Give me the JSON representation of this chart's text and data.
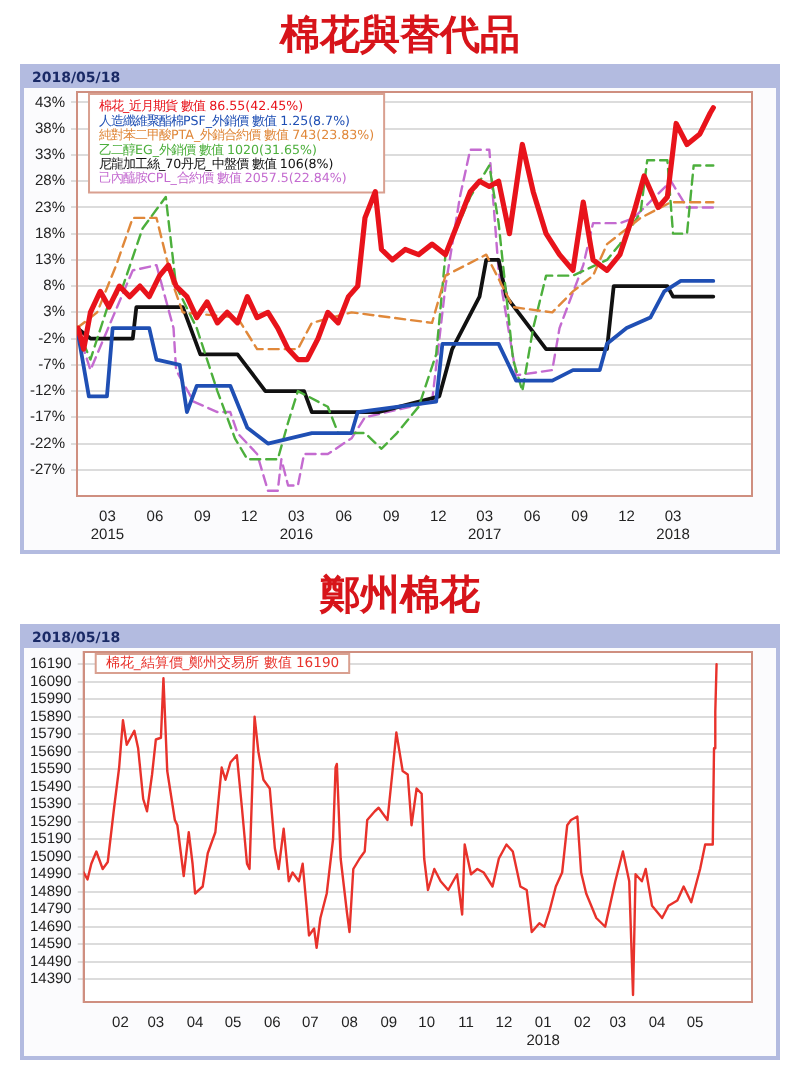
{
  "chart_data": [
    {
      "type": "line",
      "title": "棉花與替代品",
      "annotations": [
        "2018/05/18"
      ],
      "xlim": [
        "2015-01-01",
        "2018-08-01"
      ],
      "ylim": [
        -32,
        45
      ],
      "xticks": [
        {
          "value": "2015-03-01",
          "label": "03\n2015"
        },
        {
          "value": "2015-06-01",
          "label": "06"
        },
        {
          "value": "2015-09-01",
          "label": "09"
        },
        {
          "value": "2015-12-01",
          "label": "12"
        },
        {
          "value": "2016-03-01",
          "label": "03\n2016"
        },
        {
          "value": "2016-06-01",
          "label": "06"
        },
        {
          "value": "2016-09-01",
          "label": "09"
        },
        {
          "value": "2016-12-01",
          "label": "12"
        },
        {
          "value": "2017-03-01",
          "label": "03\n2017"
        },
        {
          "value": "2017-06-01",
          "label": "06"
        },
        {
          "value": "2017-09-01",
          "label": "09"
        },
        {
          "value": "2017-12-01",
          "label": "12"
        },
        {
          "value": "2018-03-01",
          "label": "03\n2018"
        }
      ],
      "yticks": [
        {
          "value": 43,
          "label": "43%"
        },
        {
          "value": 38,
          "label": "38%"
        },
        {
          "value": 33,
          "label": "33%"
        },
        {
          "value": 28,
          "label": "28%"
        },
        {
          "value": 23,
          "label": "23%"
        },
        {
          "value": 18,
          "label": "18%"
        },
        {
          "value": 13,
          "label": "13%"
        },
        {
          "value": 8,
          "label": "8%"
        },
        {
          "value": 3,
          "label": "3%"
        },
        {
          "value": -2,
          "label": "-2%"
        },
        {
          "value": -7,
          "label": "-7%"
        },
        {
          "value": -12,
          "label": "-12%"
        },
        {
          "value": -17,
          "label": "-17%"
        },
        {
          "value": -22,
          "label": "-22%"
        },
        {
          "value": -27,
          "label": "-27%"
        }
      ],
      "grid": "y",
      "legend": "top left",
      "marker": "none",
      "series": [
        {
          "name": "棉花_近月期貨 數值 86.55(42.45%)",
          "color": "#e8131b",
          "line_style": "solid",
          "x": [
            "2015-01-03",
            "2015-01-14",
            "2015-01-27",
            "2015-02-15",
            "2015-03-04",
            "2015-03-24",
            "2015-04-13",
            "2015-05-03",
            "2015-05-21",
            "2015-06-10",
            "2015-06-27",
            "2015-07-12",
            "2015-08-02",
            "2015-08-21",
            "2015-09-10",
            "2015-09-30",
            "2015-10-19",
            "2015-11-08",
            "2015-11-27",
            "2015-12-16",
            "2016-01-06",
            "2016-01-25",
            "2016-02-14",
            "2016-03-04",
            "2016-03-22",
            "2016-04-12",
            "2016-05-01",
            "2016-05-21",
            "2016-06-10",
            "2016-06-28",
            "2016-07-12",
            "2016-08-01",
            "2016-08-13",
            "2016-09-03",
            "2016-09-28",
            "2016-10-24",
            "2016-11-19",
            "2016-12-15",
            "2017-01-12",
            "2017-02-01",
            "2017-02-19",
            "2017-03-10",
            "2017-03-28",
            "2017-04-18",
            "2017-05-13",
            "2017-06-03",
            "2017-06-28",
            "2017-07-24",
            "2017-08-19",
            "2017-09-08",
            "2017-09-27",
            "2017-10-24",
            "2017-11-18",
            "2017-12-15",
            "2018-01-04",
            "2018-01-31",
            "2018-02-18",
            "2018-03-07",
            "2018-03-28",
            "2018-04-22",
            "2018-05-12",
            "2018-05-18"
          ],
          "values": [
            0,
            -4,
            3,
            7,
            4,
            8,
            6,
            8,
            6,
            10,
            12,
            8,
            6,
            2,
            5,
            1,
            3,
            1,
            6,
            2,
            3,
            0,
            -4,
            -6,
            -6,
            -2,
            3,
            1,
            6,
            8,
            21,
            26,
            15,
            13,
            15,
            14,
            16,
            14,
            21,
            26,
            28,
            27,
            28,
            18,
            35,
            26,
            18,
            14,
            11,
            24,
            13,
            11,
            14,
            22,
            29,
            23,
            25,
            39,
            35,
            37,
            41,
            42
          ]
        },
        {
          "name": "人造纖維聚酯棉PSF_外銷價 數值 1.25(8.7%)",
          "color": "#1f4fb4",
          "line_style": "solid",
          "x": [
            "2015-01-01",
            "2015-01-24",
            "2015-02-28",
            "2015-03-11",
            "2015-05-21",
            "2015-06-04",
            "2015-07-19",
            "2015-08-02",
            "2015-08-21",
            "2015-10-25",
            "2015-11-27",
            "2016-01-06",
            "2016-03-31",
            "2016-06-16",
            "2016-06-28",
            "2016-11-27",
            "2016-12-09",
            "2017-03-28",
            "2017-05-01",
            "2017-07-10",
            "2017-08-19",
            "2017-10-10",
            "2017-10-24",
            "2017-12-01",
            "2018-01-16",
            "2018-02-12",
            "2018-03-16",
            "2018-05-18"
          ],
          "values": [
            0,
            -13,
            -13,
            0,
            0,
            -6,
            -7,
            -16,
            -11,
            -11,
            -19,
            -22,
            -20,
            -20,
            -16,
            -14,
            -3,
            -3,
            -10,
            -10,
            -8,
            -8,
            -3,
            0,
            2,
            7,
            9,
            9
          ]
        },
        {
          "name": "純對苯二甲酸PTA_外銷合約價 數值 743(23.83%)",
          "color": "#e0883a",
          "line_style": "dashed",
          "x": [
            "2015-01-01",
            "2015-02-09",
            "2015-03-18",
            "2015-04-19",
            "2015-06-04",
            "2015-07-07",
            "2015-07-25",
            "2015-11-08",
            "2015-12-16",
            "2016-03-04",
            "2016-03-31",
            "2016-06-16",
            "2016-11-19",
            "2016-12-15",
            "2017-03-04",
            "2017-04-25",
            "2017-07-10",
            "2017-08-19",
            "2017-09-27",
            "2017-10-24",
            "2017-12-28",
            "2018-02-25",
            "2018-05-18"
          ],
          "values": [
            0,
            3,
            12,
            21,
            21,
            8,
            3,
            2,
            -4,
            -4,
            1,
            3,
            1,
            10,
            14,
            4,
            3,
            7,
            10,
            16,
            21,
            24,
            24
          ]
        },
        {
          "name": "乙二醇EG_外銷價 數值 1020(31.65%)",
          "color": "#4caf3c",
          "line_style": "dashed",
          "x": [
            "2015-01-01",
            "2015-01-27",
            "2015-03-01",
            "2015-03-31",
            "2015-05-08",
            "2015-06-22",
            "2015-07-12",
            "2015-08-21",
            "2015-09-30",
            "2015-11-03",
            "2015-11-27",
            "2016-01-25",
            "2016-02-14",
            "2016-03-04",
            "2016-05-01",
            "2016-05-21",
            "2016-07-12",
            "2016-08-13",
            "2016-09-12",
            "2016-10-24",
            "2016-11-27",
            "2016-12-15",
            "2017-02-01",
            "2017-03-10",
            "2017-03-28",
            "2017-04-25",
            "2017-05-13",
            "2017-06-03",
            "2017-06-28",
            "2017-08-19",
            "2017-10-24",
            "2017-11-18",
            "2017-12-28",
            "2018-01-10",
            "2018-02-18",
            "2018-03-01",
            "2018-03-28",
            "2018-04-10",
            "2018-05-18"
          ],
          "values": [
            0,
            -6,
            4,
            8,
            19,
            25,
            8,
            0,
            -12,
            -21,
            -25,
            -25,
            -18,
            -12,
            -15,
            -20,
            -20,
            -23,
            -20,
            -15,
            -5,
            14,
            25,
            31,
            20,
            -6,
            -12,
            0,
            10,
            10,
            13,
            16,
            22,
            32,
            32,
            18,
            18,
            31,
            31
          ]
        },
        {
          "name": "尼龍加工絲_70丹尼_中盤價 數值 106(8%)",
          "color": "#111111",
          "line_style": "solid",
          "x": [
            "2015-01-01",
            "2015-01-27",
            "2015-04-19",
            "2015-04-26",
            "2015-07-25",
            "2015-08-28",
            "2015-11-08",
            "2016-01-01",
            "2016-03-16",
            "2016-03-31",
            "2016-08-07",
            "2016-12-03",
            "2016-12-28",
            "2017-02-19",
            "2017-03-04",
            "2017-03-28",
            "2017-04-12",
            "2017-06-28",
            "2017-10-24",
            "2017-11-06",
            "2018-02-18",
            "2018-03-01",
            "2018-05-18"
          ],
          "values": [
            0,
            -2,
            -2,
            4,
            4,
            -5,
            -5,
            -12,
            -12,
            -16,
            -16,
            -13,
            -4,
            6,
            13,
            13,
            6,
            -4,
            -4,
            8,
            8,
            6,
            6
          ]
        },
        {
          "name": "己內醯胺CPL_合約價 數值 2057.5(22.84%)",
          "color": "#c46bd0",
          "line_style": "dashed",
          "x": [
            "2015-01-01",
            "2015-01-27",
            "2015-03-11",
            "2015-04-19",
            "2015-06-04",
            "2015-07-07",
            "2015-07-12",
            "2015-08-15",
            "2015-09-30",
            "2015-10-25",
            "2015-11-08",
            "2015-12-16",
            "2016-01-06",
            "2016-01-25",
            "2016-02-01",
            "2016-02-14",
            "2016-03-04",
            "2016-03-16",
            "2016-05-01",
            "2016-06-16",
            "2016-07-12",
            "2016-11-19",
            "2016-12-15",
            "2017-01-12",
            "2017-02-01",
            "2017-03-10",
            "2017-03-28",
            "2017-05-01",
            "2017-07-10",
            "2017-07-24",
            "2017-09-08",
            "2017-09-27",
            "2017-11-18",
            "2017-12-15",
            "2018-02-25",
            "2018-03-28",
            "2018-05-18"
          ],
          "values": [
            0,
            -8,
            2,
            11,
            12,
            0,
            -8,
            -14,
            -16,
            -16,
            -20,
            -24,
            -31,
            -31,
            -25,
            -30,
            -30,
            -24,
            -24,
            -21,
            -17,
            -14,
            8,
            25,
            34,
            34,
            11,
            -9,
            -8,
            0,
            12,
            20,
            20,
            21,
            28,
            23,
            23
          ]
        }
      ]
    },
    {
      "type": "line",
      "title": "鄭州棉花",
      "annotations": [
        "2018/05/18"
      ],
      "xlim": [
        "2017-01-03",
        "2018-06-15"
      ],
      "ylim": [
        14260,
        16260
      ],
      "xticks": [
        {
          "value": "2017-02-01",
          "label": "02"
        },
        {
          "value": "2017-03-01",
          "label": "03"
        },
        {
          "value": "2017-04-01",
          "label": "04"
        },
        {
          "value": "2017-05-01",
          "label": "05"
        },
        {
          "value": "2017-06-01",
          "label": "06"
        },
        {
          "value": "2017-07-01",
          "label": "07"
        },
        {
          "value": "2017-08-01",
          "label": "08"
        },
        {
          "value": "2017-09-01",
          "label": "09"
        },
        {
          "value": "2017-10-01",
          "label": "10"
        },
        {
          "value": "2017-11-01",
          "label": "11"
        },
        {
          "value": "2017-12-01",
          "label": "12"
        },
        {
          "value": "2018-01-01",
          "label": "01\n2018"
        },
        {
          "value": "2018-02-01",
          "label": "02"
        },
        {
          "value": "2018-03-01",
          "label": "03"
        },
        {
          "value": "2018-04-01",
          "label": "04"
        },
        {
          "value": "2018-05-01",
          "label": "05"
        }
      ],
      "yticks": [
        16190,
        16090,
        15990,
        15890,
        15790,
        15690,
        15590,
        15490,
        15390,
        15290,
        15190,
        15090,
        14990,
        14890,
        14790,
        14690,
        14590,
        14490,
        14390
      ],
      "grid": "y",
      "legend": "top left",
      "marker": "none",
      "series": [
        {
          "name": "棉花_結算價_鄭州交易所 數值 16190",
          "color": "#e8322b",
          "line_style": "solid",
          "x": [
            "2017-01-03",
            "2017-01-06",
            "2017-01-09",
            "2017-01-13",
            "2017-01-18",
            "2017-01-22",
            "2017-01-27",
            "2017-01-31",
            "2017-02-03",
            "2017-02-06",
            "2017-02-12",
            "2017-02-15",
            "2017-02-19",
            "2017-02-22",
            "2017-02-26",
            "2017-03-01",
            "2017-03-05",
            "2017-03-07",
            "2017-03-10",
            "2017-03-16",
            "2017-03-18",
            "2017-03-23",
            "2017-03-27",
            "2017-03-30",
            "2017-04-01",
            "2017-04-07",
            "2017-04-11",
            "2017-04-17",
            "2017-04-22",
            "2017-04-25",
            "2017-04-29",
            "2017-05-04",
            "2017-05-08",
            "2017-05-12",
            "2017-05-14",
            "2017-05-18",
            "2017-05-21",
            "2017-05-25",
            "2017-05-30",
            "2017-06-03",
            "2017-06-06",
            "2017-06-10",
            "2017-06-14",
            "2017-06-17",
            "2017-06-22",
            "2017-06-25",
            "2017-06-28",
            "2017-06-30",
            "2017-07-04",
            "2017-07-06",
            "2017-07-09",
            "2017-07-14",
            "2017-07-19",
            "2017-07-21",
            "2017-07-22",
            "2017-07-25",
            "2017-07-30",
            "2017-08-01",
            "2017-08-04",
            "2017-08-09",
            "2017-08-13",
            "2017-08-15",
            "2017-08-21",
            "2017-08-24",
            "2017-08-31",
            "2017-09-04",
            "2017-09-07",
            "2017-09-12",
            "2017-09-16",
            "2017-09-19",
            "2017-09-23",
            "2017-09-27",
            "2017-09-29",
            "2017-10-02",
            "2017-10-07",
            "2017-10-12",
            "2017-10-18",
            "2017-10-25",
            "2017-10-29",
            "2017-10-31",
            "2017-11-05",
            "2017-11-10",
            "2017-11-15",
            "2017-11-22",
            "2017-11-27",
            "2017-12-03",
            "2017-12-08",
            "2017-12-14",
            "2017-12-19",
            "2017-12-23",
            "2017-12-29",
            "2018-01-02",
            "2018-01-06",
            "2018-01-11",
            "2018-01-16",
            "2018-01-20",
            "2018-01-23",
            "2018-01-28",
            "2018-01-31",
            "2018-02-04",
            "2018-02-12",
            "2018-02-19",
            "2018-02-27",
            "2018-03-05",
            "2018-03-10",
            "2018-03-13",
            "2018-03-15",
            "2018-03-20",
            "2018-03-23",
            "2018-03-28",
            "2018-04-05",
            "2018-04-10",
            "2018-04-17",
            "2018-04-22",
            "2018-04-28",
            "2018-05-05",
            "2018-05-09",
            "2018-05-15",
            "2018-05-16",
            "2018-05-17",
            "2018-05-18"
          ],
          "values": [
            15000,
            14960,
            15050,
            15120,
            15020,
            15060,
            15370,
            15600,
            15870,
            15730,
            15810,
            15710,
            15420,
            15350,
            15560,
            15760,
            15770,
            16110,
            15580,
            15300,
            15270,
            14980,
            15230,
            15050,
            14880,
            14920,
            15110,
            15230,
            15600,
            15530,
            15630,
            15670,
            15370,
            15050,
            15020,
            15890,
            15690,
            15530,
            15480,
            15140,
            15020,
            15250,
            14950,
            15000,
            14950,
            15050,
            14810,
            14640,
            14680,
            14570,
            14740,
            14880,
            15190,
            15600,
            15620,
            15080,
            14770,
            14660,
            15020,
            15080,
            15120,
            15300,
            15350,
            15370,
            15300,
            15580,
            15800,
            15580,
            15560,
            15270,
            15480,
            15450,
            15080,
            14900,
            15020,
            14950,
            14900,
            14990,
            14760,
            15160,
            14990,
            15020,
            15000,
            14920,
            15080,
            15160,
            15120,
            14920,
            14900,
            14660,
            14710,
            14690,
            14780,
            14920,
            15000,
            15270,
            15300,
            15320,
            15000,
            14880,
            14740,
            14690,
            14950,
            15120,
            14950,
            14300,
            14990,
            14950,
            15020,
            14810,
            14740,
            14810,
            14840,
            14920,
            14830,
            15020,
            15160,
            15160,
            15710,
            15920,
            16190
          ]
        }
      ]
    }
  ]
}
